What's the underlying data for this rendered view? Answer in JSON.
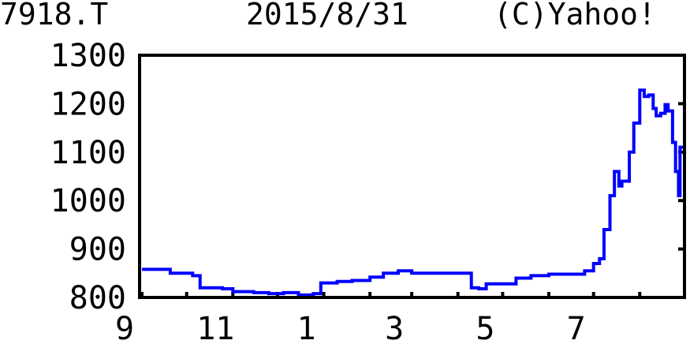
{
  "header": {
    "ticker": "7918.T",
    "date": "2015/8/31",
    "copyright": "(C)Yahoo!"
  },
  "chart_data": {
    "type": "line",
    "title": "",
    "xlabel": "",
    "ylabel": "",
    "ylim": [
      800,
      1300
    ],
    "xlim": [
      "2014-09-01",
      "2015-08-31"
    ],
    "yticks": [
      800,
      900,
      1000,
      1100,
      1200,
      1300
    ],
    "xtick_labels": [
      {
        "label": "9",
        "date": "2014-09-01"
      },
      {
        "label": "11",
        "date": "2014-11-01"
      },
      {
        "label": "1",
        "date": "2015-01-01"
      },
      {
        "label": "3",
        "date": "2015-03-01"
      },
      {
        "label": "5",
        "date": "2015-05-01"
      },
      {
        "label": "7",
        "date": "2015-07-01"
      }
    ],
    "line_color": "#0000ff",
    "grid": false,
    "series": [
      {
        "points": [
          [
            "2014-09-01",
            858
          ],
          [
            "2014-09-20",
            850
          ],
          [
            "2014-10-05",
            845
          ],
          [
            "2014-10-10",
            820
          ],
          [
            "2014-10-25",
            818
          ],
          [
            "2014-11-01",
            812
          ],
          [
            "2014-11-15",
            810
          ],
          [
            "2014-11-25",
            808
          ],
          [
            "2014-12-05",
            810
          ],
          [
            "2014-12-15",
            805
          ],
          [
            "2014-12-25",
            808
          ],
          [
            "2014-12-30",
            830
          ],
          [
            "2015-01-10",
            833
          ],
          [
            "2015-01-20",
            835
          ],
          [
            "2015-02-01",
            842
          ],
          [
            "2015-02-10",
            850
          ],
          [
            "2015-02-20",
            855
          ],
          [
            "2015-03-01",
            850
          ],
          [
            "2015-03-15",
            850
          ],
          [
            "2015-04-01",
            850
          ],
          [
            "2015-04-08",
            850
          ],
          [
            "2015-04-10",
            820
          ],
          [
            "2015-04-15",
            818
          ],
          [
            "2015-04-20",
            828
          ],
          [
            "2015-05-01",
            828
          ],
          [
            "2015-05-10",
            840
          ],
          [
            "2015-05-20",
            845
          ],
          [
            "2015-06-01",
            848
          ],
          [
            "2015-06-15",
            848
          ],
          [
            "2015-06-25",
            855
          ],
          [
            "2015-07-01",
            870
          ],
          [
            "2015-07-05",
            880
          ],
          [
            "2015-07-08",
            940
          ],
          [
            "2015-07-12",
            1010
          ],
          [
            "2015-07-15",
            1060
          ],
          [
            "2015-07-18",
            1030
          ],
          [
            "2015-07-20",
            1040
          ],
          [
            "2015-07-25",
            1100
          ],
          [
            "2015-07-28",
            1160
          ],
          [
            "2015-08-01",
            1228
          ],
          [
            "2015-08-04",
            1215
          ],
          [
            "2015-08-07",
            1218
          ],
          [
            "2015-08-10",
            1190
          ],
          [
            "2015-08-12",
            1175
          ],
          [
            "2015-08-15",
            1180
          ],
          [
            "2015-08-18",
            1198
          ],
          [
            "2015-08-20",
            1185
          ],
          [
            "2015-08-23",
            1120
          ],
          [
            "2015-08-25",
            1060
          ],
          [
            "2015-08-27",
            1010
          ],
          [
            "2015-08-28",
            1110
          ],
          [
            "2015-08-31",
            1095
          ]
        ]
      }
    ]
  }
}
